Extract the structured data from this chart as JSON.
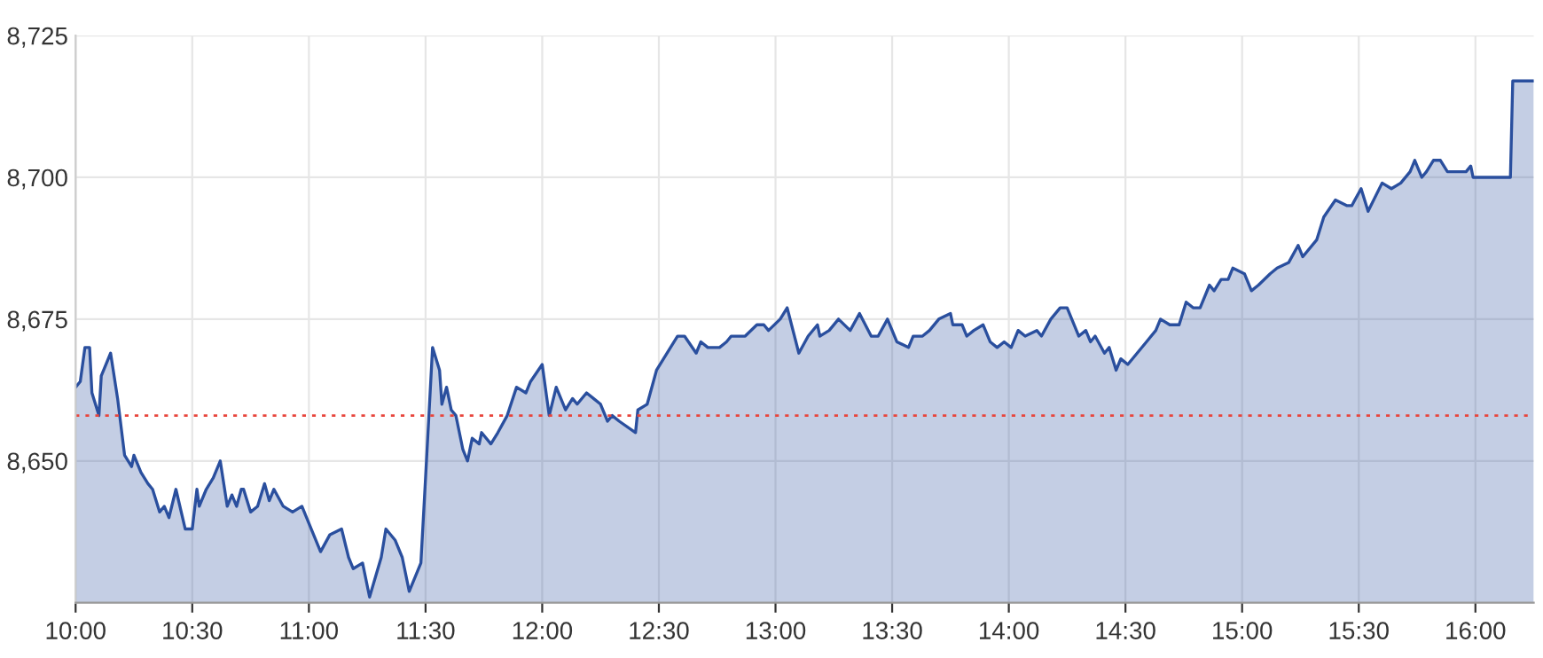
{
  "chart_data": {
    "type": "area",
    "x": [
      10.0,
      10.02,
      10.04,
      10.06,
      10.07,
      10.1,
      10.11,
      10.15,
      10.18,
      10.21,
      10.24,
      10.25,
      10.28,
      10.31,
      10.33,
      10.36,
      10.38,
      10.4,
      10.43,
      10.47,
      10.5,
      10.52,
      10.53,
      10.56,
      10.59,
      10.62,
      10.65,
      10.67,
      10.69,
      10.71,
      10.72,
      10.75,
      10.78,
      10.81,
      10.83,
      10.85,
      10.89,
      10.93,
      10.97,
      11.0,
      11.05,
      11.09,
      11.14,
      11.17,
      11.19,
      11.23,
      11.26,
      11.31,
      11.33,
      11.37,
      11.4,
      11.43,
      11.48,
      11.5,
      11.53,
      11.56,
      11.57,
      11.59,
      11.61,
      11.63,
      11.66,
      11.68,
      11.7,
      11.73,
      11.74,
      11.78,
      11.81,
      11.85,
      11.89,
      11.93,
      11.95,
      12.0,
      12.03,
      12.06,
      12.1,
      12.13,
      12.15,
      12.19,
      12.22,
      12.25,
      12.28,
      12.3,
      12.33,
      12.4,
      12.41,
      12.45,
      12.49,
      12.52,
      12.58,
      12.61,
      12.66,
      12.68,
      12.71,
      12.76,
      12.79,
      12.81,
      12.87,
      12.92,
      12.95,
      12.97,
      13.02,
      13.05,
      13.1,
      13.14,
      13.18,
      13.19,
      13.23,
      13.27,
      13.32,
      13.36,
      13.41,
      13.44,
      13.48,
      13.52,
      13.57,
      13.59,
      13.63,
      13.66,
      13.7,
      13.75,
      13.76,
      13.8,
      13.82,
      13.85,
      13.89,
      13.92,
      13.95,
      13.98,
      14.01,
      14.04,
      14.07,
      14.12,
      14.14,
      14.18,
      14.22,
      14.25,
      14.3,
      14.33,
      14.35,
      14.37,
      14.41,
      14.43,
      14.46,
      14.48,
      14.51,
      14.55,
      14.59,
      14.63,
      14.65,
      14.69,
      14.73,
      14.76,
      14.79,
      14.82,
      14.86,
      14.88,
      14.91,
      14.94,
      14.96,
      15.01,
      15.04,
      15.07,
      15.12,
      15.15,
      15.2,
      15.24,
      15.26,
      15.32,
      15.35,
      15.4,
      15.45,
      15.47,
      15.51,
      15.54,
      15.6,
      15.64,
      15.68,
      15.72,
      15.74,
      15.77,
      15.79,
      15.82,
      15.85,
      15.88,
      15.92,
      15.96,
      15.98,
      15.99,
      16.15,
      16.16,
      16.25
    ],
    "series": [
      {
        "color": "#2a4f9e",
        "values": [
          8663,
          8664,
          8670,
          8670,
          8662,
          8658,
          8665,
          8669,
          8661,
          8651,
          8649,
          8651,
          8648,
          8646,
          8645,
          8641,
          8642,
          8640,
          8645,
          8638,
          8638,
          8645,
          8642,
          8645,
          8647,
          8650,
          8642,
          8644,
          8642,
          8645,
          8645,
          8641,
          8642,
          8646,
          8643,
          8645,
          8642,
          8641,
          8642,
          8639,
          8634,
          8637,
          8638,
          8633,
          8631,
          8632,
          8626,
          8633,
          8638,
          8636,
          8633,
          8627,
          8632,
          8647,
          8670,
          8666,
          8660,
          8663,
          8659,
          8658,
          8652,
          8650,
          8654,
          8653,
          8655,
          8653,
          8655,
          8658,
          8663,
          8662,
          8664,
          8667,
          8658,
          8663,
          8659,
          8661,
          8660,
          8662,
          8661,
          8660,
          8657,
          8658,
          8657,
          8655,
          8659,
          8660,
          8666,
          8668,
          8672,
          8672,
          8669,
          8671,
          8670,
          8670,
          8671,
          8672,
          8672,
          8674,
          8674,
          8673,
          8675,
          8677,
          8669,
          8672,
          8674,
          8672,
          8673,
          8675,
          8673,
          8676,
          8672,
          8672,
          8675,
          8671,
          8670,
          8672,
          8672,
          8673,
          8675,
          8676,
          8674,
          8674,
          8672,
          8673,
          8674,
          8671,
          8670,
          8671,
          8670,
          8673,
          8672,
          8673,
          8672,
          8675,
          8677,
          8677,
          8672,
          8673,
          8671,
          8672,
          8669,
          8670,
          8666,
          8668,
          8667,
          8669,
          8671,
          8673,
          8675,
          8674,
          8674,
          8678,
          8677,
          8677,
          8681,
          8680,
          8682,
          8682,
          8684,
          8683,
          8680,
          8681,
          8683,
          8684,
          8685,
          8688,
          8686,
          8689,
          8693,
          8696,
          8695,
          8695,
          8698,
          8694,
          8699,
          8698,
          8699,
          8701,
          8703,
          8700,
          8701,
          8703,
          8703,
          8701,
          8701,
          8701,
          8702,
          8700,
          8700,
          8717,
          8717
        ]
      }
    ],
    "xlim": [
      10,
      16.25
    ],
    "xticks": [
      {
        "value": 10,
        "label": "10:00"
      },
      {
        "value": 10.5,
        "label": "10:30"
      },
      {
        "value": 11,
        "label": "11:00"
      },
      {
        "value": 11.5,
        "label": "11:30"
      },
      {
        "value": 12,
        "label": "12:00"
      },
      {
        "value": 12.5,
        "label": "12:30"
      },
      {
        "value": 13,
        "label": "13:00"
      },
      {
        "value": 13.5,
        "label": "13:30"
      },
      {
        "value": 14,
        "label": "14:00"
      },
      {
        "value": 14.5,
        "label": "14:30"
      },
      {
        "value": 15,
        "label": "15:00"
      },
      {
        "value": 15.5,
        "label": "15:30"
      },
      {
        "value": 16,
        "label": "16:00"
      }
    ],
    "ylim": [
      8625,
      8725
    ],
    "yticks": [
      {
        "value": 8650,
        "label": "8,650"
      },
      {
        "value": 8675,
        "label": "8,675"
      },
      {
        "value": 8700,
        "label": "8,700"
      },
      {
        "value": 8725,
        "label": "8,725"
      }
    ],
    "ref_lines": [
      {
        "axis": "y",
        "value": 8658,
        "color": "#e8453c",
        "line_style": "dotted"
      }
    ],
    "grid": true,
    "legend": false
  }
}
